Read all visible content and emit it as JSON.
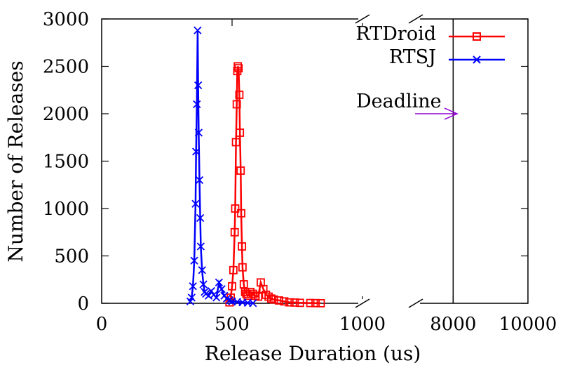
{
  "chart_data": {
    "type": "line",
    "xlabel": "Release Duration (us)",
    "ylabel": "Number of Releases",
    "ylim": [
      0,
      3000
    ],
    "yticks": [
      "0",
      "500",
      "1000",
      "1500",
      "2000",
      "2500",
      "3000"
    ],
    "xticks": [
      "0",
      "500",
      "1000",
      "8000",
      "10000"
    ],
    "x_axis_break": {
      "from": 1000,
      "to": 7000
    },
    "xlim": [
      0,
      10000
    ],
    "legend_position": "top-right",
    "annotation": {
      "label": "Deadline",
      "x": 8000,
      "y": 2000
    },
    "deadline_x": 8000,
    "series": [
      {
        "name": "RTDroid",
        "color": "#ff0000",
        "marker": "square",
        "x": [
          490,
          495,
          500,
          505,
          510,
          512,
          515,
          518,
          520,
          522,
          525,
          528,
          530,
          533,
          535,
          538,
          540,
          545,
          550,
          555,
          560,
          570,
          580,
          590,
          600,
          610,
          620,
          630,
          640,
          650,
          660,
          680,
          700,
          720,
          740,
          760,
          800,
          820,
          840
        ],
        "values": [
          10,
          60,
          180,
          350,
          750,
          1000,
          1700,
          2100,
          2450,
          2500,
          2480,
          2200,
          1800,
          1400,
          950,
          600,
          380,
          200,
          120,
          100,
          80,
          120,
          100,
          80,
          70,
          220,
          150,
          90,
          70,
          50,
          40,
          30,
          20,
          10,
          8,
          5,
          3,
          2,
          1
        ]
      },
      {
        "name": "RTSJ",
        "color": "#0000ff",
        "marker": "x",
        "x": [
          340,
          345,
          350,
          355,
          360,
          362,
          365,
          368,
          370,
          372,
          375,
          378,
          380,
          385,
          390,
          395,
          400,
          410,
          420,
          430,
          440,
          450,
          460,
          470,
          480,
          490,
          500,
          520,
          540,
          560,
          580
        ],
        "values": [
          20,
          60,
          180,
          450,
          1050,
          1600,
          2100,
          2880,
          2300,
          1800,
          1300,
          900,
          600,
          350,
          200,
          120,
          100,
          80,
          130,
          90,
          60,
          220,
          150,
          80,
          50,
          30,
          20,
          15,
          10,
          5,
          2
        ]
      }
    ]
  }
}
